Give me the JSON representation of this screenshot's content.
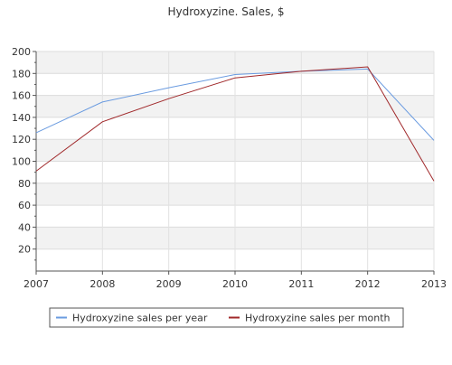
{
  "chart_data": {
    "type": "line",
    "title": "Hydroxyzine. Sales, $",
    "xlabel": "",
    "ylabel": "",
    "x": [
      2007,
      2008,
      2009,
      2010,
      2011,
      2012,
      2013
    ],
    "xlim": [
      2007,
      2013
    ],
    "ylim": [
      0,
      200
    ],
    "yticks": [
      20,
      40,
      60,
      80,
      100,
      120,
      140,
      160,
      180,
      200
    ],
    "grid": "horizontal bands",
    "legend_position": "bottom",
    "series": [
      {
        "name": "Hydroxyzine sales per year",
        "color": "#6a9be0",
        "values": [
          126,
          154,
          167,
          179,
          182,
          184,
          119
        ]
      },
      {
        "name": "Hydroxyzine sales per month",
        "color": "#a0282a",
        "values": [
          91,
          136,
          157,
          176,
          182,
          186,
          82
        ]
      }
    ]
  }
}
